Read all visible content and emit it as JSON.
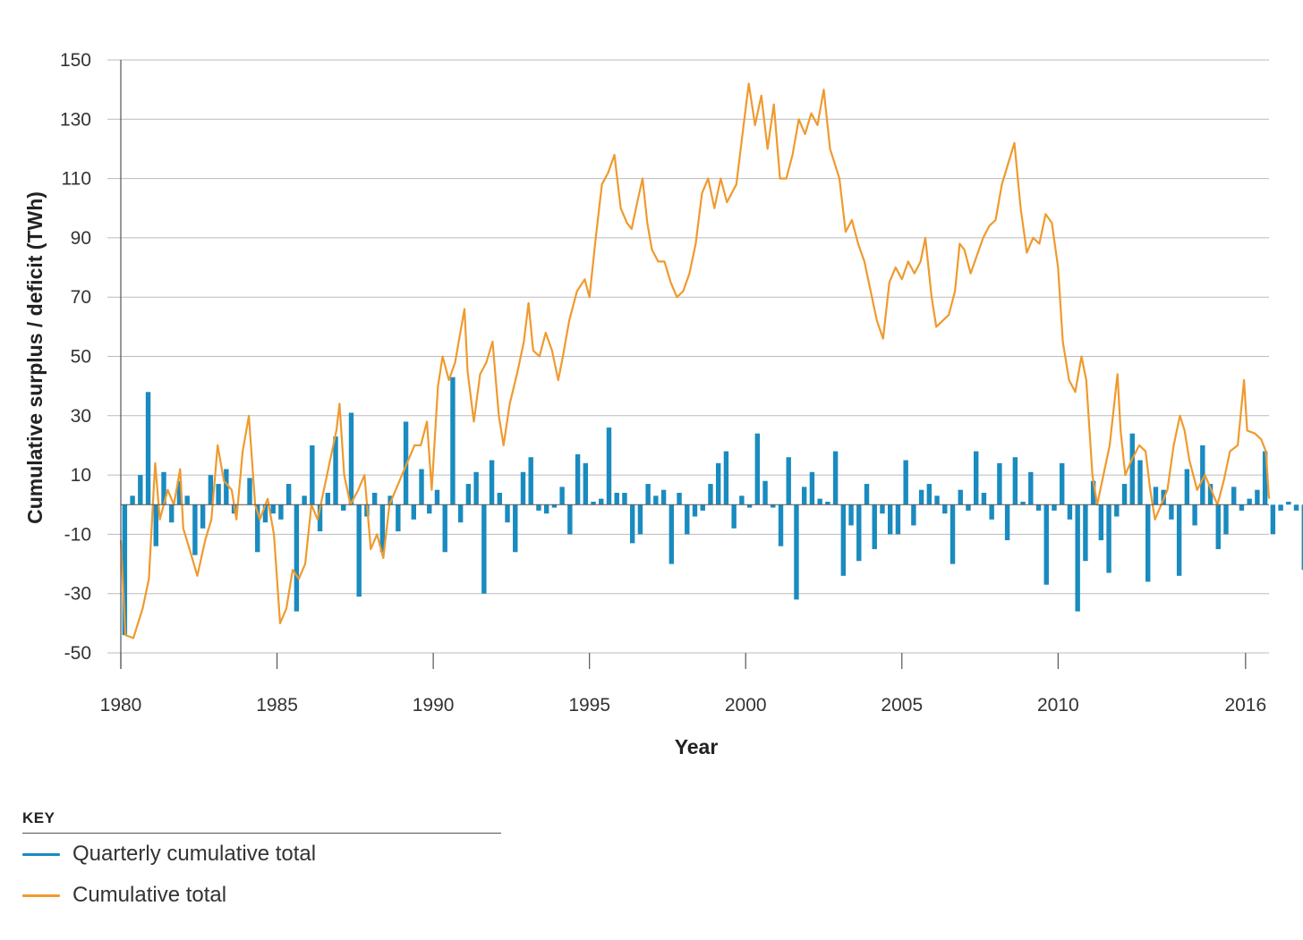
{
  "colors": {
    "quarterly": "#1a8bbf",
    "cumulative": "#ef9a2e",
    "grid": "#bbbbbb",
    "axis": "#555555"
  },
  "key": {
    "title": "KEY",
    "items": [
      {
        "label": "Quarterly cumulative total",
        "color": "#1a8bbf"
      },
      {
        "label": "Cumulative total",
        "color": "#ef9a2e"
      }
    ]
  },
  "chart_data": {
    "type": "bar+line",
    "title": "",
    "xlabel": "Year",
    "ylabel": "Cumulative surplus / deficit (TWh)",
    "xlim": [
      1980,
      2016.75
    ],
    "ylim": [
      -50,
      150
    ],
    "yticks": [
      150,
      130,
      110,
      90,
      70,
      50,
      30,
      10,
      -10,
      -30,
      -50
    ],
    "xticks": [
      "1980",
      "1985",
      "1990",
      "1995",
      "2000",
      "2005",
      "2010",
      "2016"
    ],
    "xtick_values": [
      1980,
      1985,
      1990,
      1995,
      2000,
      2005,
      2010,
      2016
    ],
    "grid": "horizontal",
    "legend_position": "bottom-left",
    "series": [
      {
        "name": "Quarterly cumulative total",
        "type": "bar",
        "x_start": 1980.0,
        "x_step": 0.25,
        "values": [
          -44,
          3,
          10,
          38,
          -14,
          11,
          -6,
          8,
          3,
          -17,
          -8,
          10,
          7,
          12,
          -3,
          0,
          9,
          -16,
          -6,
          -3,
          -5,
          7,
          -36,
          3,
          20,
          -9,
          4,
          23,
          -2,
          31,
          -31,
          -4,
          4,
          -16,
          3,
          -9,
          28,
          -5,
          12,
          -3,
          5,
          -16,
          43,
          -6,
          7,
          11,
          -30,
          15,
          4,
          -6,
          -16,
          11,
          16,
          -2,
          -3,
          -1,
          6,
          -10,
          17,
          14,
          1,
          2,
          26,
          4,
          4,
          -13,
          -10,
          7,
          3,
          5,
          -20,
          4,
          -10,
          -4,
          -2,
          7,
          14,
          18,
          -8,
          3,
          -1,
          24,
          8,
          -1,
          -14,
          16,
          -32,
          6,
          11,
          2,
          1,
          18,
          -24,
          -7,
          -19,
          7,
          -15,
          -3,
          -10,
          -10,
          15,
          -7,
          5,
          7,
          3,
          -3,
          -20,
          5,
          -2,
          18,
          4,
          -5,
          14,
          -12,
          16,
          1,
          11,
          -2,
          -27,
          -2,
          14,
          -5,
          -36,
          -19,
          8,
          -12,
          -23,
          -4,
          7,
          24,
          15,
          -26,
          6,
          5,
          -5,
          -24,
          12,
          -7,
          20,
          7,
          -15,
          -10,
          6,
          -2,
          2,
          5,
          18,
          -10,
          -2,
          1,
          -2,
          -22
        ]
      },
      {
        "name": "Cumulative total",
        "type": "line",
        "points": [
          [
            1980.0,
            -12
          ],
          [
            1980.15,
            -44
          ],
          [
            1980.4,
            -45
          ],
          [
            1980.7,
            -35
          ],
          [
            1980.9,
            -25
          ],
          [
            1981.05,
            5
          ],
          [
            1981.1,
            14
          ],
          [
            1981.25,
            -5
          ],
          [
            1981.5,
            5
          ],
          [
            1981.7,
            0
          ],
          [
            1981.9,
            12
          ],
          [
            1982.0,
            -8
          ],
          [
            1982.2,
            -15
          ],
          [
            1982.45,
            -24
          ],
          [
            1982.7,
            -12
          ],
          [
            1982.9,
            -5
          ],
          [
            1983.1,
            20
          ],
          [
            1983.3,
            8
          ],
          [
            1983.55,
            5
          ],
          [
            1983.7,
            -5
          ],
          [
            1983.9,
            18
          ],
          [
            1984.1,
            30
          ],
          [
            1984.3,
            0
          ],
          [
            1984.45,
            -5
          ],
          [
            1984.7,
            2
          ],
          [
            1984.9,
            -10
          ],
          [
            1985.1,
            -40
          ],
          [
            1985.3,
            -35
          ],
          [
            1985.5,
            -22
          ],
          [
            1985.7,
            -25
          ],
          [
            1985.9,
            -20
          ],
          [
            1986.1,
            0
          ],
          [
            1986.3,
            -5
          ],
          [
            1986.5,
            5
          ],
          [
            1986.7,
            15
          ],
          [
            1986.9,
            25
          ],
          [
            1987.0,
            34
          ],
          [
            1987.15,
            10
          ],
          [
            1987.35,
            0
          ],
          [
            1987.6,
            5
          ],
          [
            1987.8,
            10
          ],
          [
            1988.0,
            -15
          ],
          [
            1988.2,
            -10
          ],
          [
            1988.4,
            -18
          ],
          [
            1988.6,
            0
          ],
          [
            1988.8,
            5
          ],
          [
            1989.0,
            10
          ],
          [
            1989.2,
            15
          ],
          [
            1989.4,
            20
          ],
          [
            1989.6,
            20
          ],
          [
            1989.8,
            28
          ],
          [
            1989.95,
            5
          ],
          [
            1990.15,
            40
          ],
          [
            1990.3,
            50
          ],
          [
            1990.5,
            42
          ],
          [
            1990.7,
            48
          ],
          [
            1990.9,
            60
          ],
          [
            1991.0,
            66
          ],
          [
            1991.1,
            45
          ],
          [
            1991.3,
            28
          ],
          [
            1991.5,
            44
          ],
          [
            1991.7,
            48
          ],
          [
            1991.9,
            55
          ],
          [
            1992.1,
            30
          ],
          [
            1992.25,
            20
          ],
          [
            1992.45,
            34
          ],
          [
            1992.7,
            45
          ],
          [
            1992.9,
            55
          ],
          [
            1993.05,
            68
          ],
          [
            1993.2,
            52
          ],
          [
            1993.4,
            50
          ],
          [
            1993.6,
            58
          ],
          [
            1993.8,
            52
          ],
          [
            1994.0,
            42
          ],
          [
            1994.15,
            50
          ],
          [
            1994.35,
            62
          ],
          [
            1994.6,
            72
          ],
          [
            1994.85,
            76
          ],
          [
            1995.0,
            70
          ],
          [
            1995.2,
            90
          ],
          [
            1995.4,
            108
          ],
          [
            1995.6,
            112
          ],
          [
            1995.8,
            118
          ],
          [
            1996.0,
            100
          ],
          [
            1996.2,
            95
          ],
          [
            1996.35,
            93
          ],
          [
            1996.55,
            103
          ],
          [
            1996.7,
            110
          ],
          [
            1996.85,
            95
          ],
          [
            1997.0,
            86
          ],
          [
            1997.2,
            82
          ],
          [
            1997.4,
            82
          ],
          [
            1997.6,
            75
          ],
          [
            1997.8,
            70
          ],
          [
            1998.0,
            72
          ],
          [
            1998.2,
            78
          ],
          [
            1998.4,
            88
          ],
          [
            1998.6,
            105
          ],
          [
            1998.8,
            110
          ],
          [
            1999.0,
            100
          ],
          [
            1999.2,
            110
          ],
          [
            1999.4,
            102
          ],
          [
            1999.7,
            108
          ],
          [
            1999.9,
            125
          ],
          [
            2000.1,
            142
          ],
          [
            2000.3,
            128
          ],
          [
            2000.5,
            138
          ],
          [
            2000.7,
            120
          ],
          [
            2000.9,
            135
          ],
          [
            2001.1,
            110
          ],
          [
            2001.3,
            110
          ],
          [
            2001.5,
            118
          ],
          [
            2001.7,
            130
          ],
          [
            2001.9,
            125
          ],
          [
            2002.1,
            132
          ],
          [
            2002.3,
            128
          ],
          [
            2002.5,
            140
          ],
          [
            2002.7,
            120
          ],
          [
            2003.0,
            110
          ],
          [
            2003.2,
            92
          ],
          [
            2003.4,
            96
          ],
          [
            2003.6,
            88
          ],
          [
            2003.8,
            82
          ],
          [
            2004.0,
            72
          ],
          [
            2004.2,
            62
          ],
          [
            2004.4,
            56
          ],
          [
            2004.6,
            75
          ],
          [
            2004.8,
            80
          ],
          [
            2005.0,
            76
          ],
          [
            2005.2,
            82
          ],
          [
            2005.4,
            78
          ],
          [
            2005.6,
            82
          ],
          [
            2005.75,
            90
          ],
          [
            2005.95,
            70
          ],
          [
            2006.1,
            60
          ],
          [
            2006.3,
            62
          ],
          [
            2006.5,
            64
          ],
          [
            2006.7,
            72
          ],
          [
            2006.85,
            88
          ],
          [
            2007.0,
            86
          ],
          [
            2007.2,
            78
          ],
          [
            2007.4,
            84
          ],
          [
            2007.6,
            90
          ],
          [
            2007.8,
            94
          ],
          [
            2008.0,
            96
          ],
          [
            2008.2,
            108
          ],
          [
            2008.4,
            115
          ],
          [
            2008.6,
            122
          ],
          [
            2008.8,
            100
          ],
          [
            2009.0,
            85
          ],
          [
            2009.2,
            90
          ],
          [
            2009.4,
            88
          ],
          [
            2009.6,
            98
          ],
          [
            2009.8,
            95
          ],
          [
            2010.0,
            80
          ],
          [
            2010.15,
            55
          ],
          [
            2010.35,
            42
          ],
          [
            2010.55,
            38
          ],
          [
            2010.75,
            50
          ],
          [
            2010.9,
            42
          ],
          [
            2011.1,
            10
          ],
          [
            2011.25,
            0
          ],
          [
            2011.45,
            10
          ],
          [
            2011.65,
            20
          ],
          [
            2011.9,
            44
          ],
          [
            2012.0,
            25
          ],
          [
            2012.15,
            10
          ],
          [
            2012.35,
            15
          ],
          [
            2012.6,
            20
          ],
          [
            2012.8,
            18
          ],
          [
            2012.95,
            5
          ],
          [
            2013.1,
            -5
          ],
          [
            2013.3,
            0
          ],
          [
            2013.5,
            5
          ],
          [
            2013.7,
            20
          ],
          [
            2013.9,
            30
          ],
          [
            2014.05,
            25
          ],
          [
            2014.2,
            15
          ],
          [
            2014.45,
            5
          ],
          [
            2014.7,
            10
          ],
          [
            2014.9,
            5
          ],
          [
            2015.1,
            0
          ],
          [
            2015.3,
            8
          ],
          [
            2015.5,
            18
          ],
          [
            2015.75,
            20
          ],
          [
            2015.95,
            42
          ],
          [
            2016.05,
            25
          ],
          [
            2016.3,
            24
          ],
          [
            2016.5,
            22
          ],
          [
            2016.65,
            18
          ],
          [
            2016.75,
            2
          ]
        ]
      }
    ]
  }
}
